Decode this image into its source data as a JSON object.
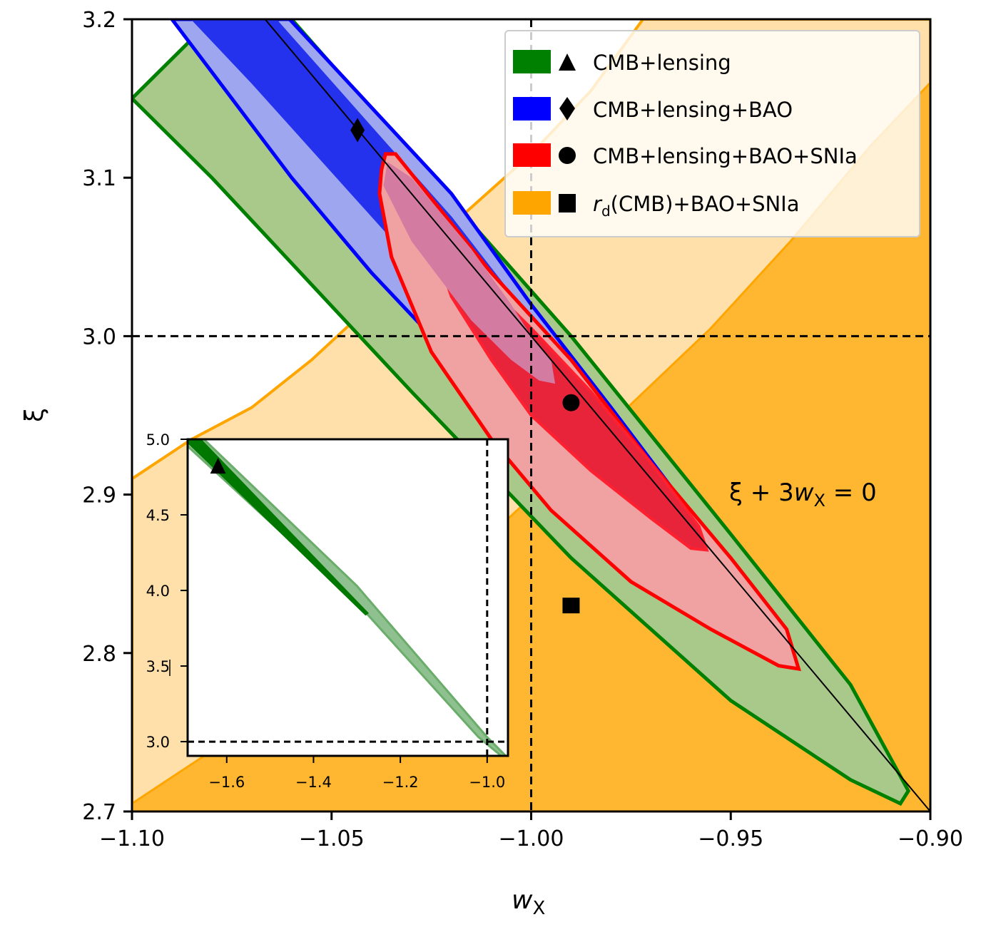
{
  "chart_data": {
    "type": "contour",
    "xlabel": "w_X",
    "xlabel_main": "w",
    "xlabel_sub": "X",
    "ylabel": "ξ",
    "xlim": [
      -1.1,
      -0.9
    ],
    "ylim": [
      2.7,
      3.2
    ],
    "xticks": [
      -1.1,
      -1.05,
      -1.0,
      -0.95,
      -0.9
    ],
    "xtick_labels": [
      "−1.10",
      "−1.05",
      "−1.00",
      "−0.95",
      "−0.90"
    ],
    "yticks": [
      2.7,
      2.8,
      2.9,
      3.0,
      3.1,
      3.2
    ],
    "ytick_labels": [
      "2.7",
      "2.8",
      "2.9",
      "3.0",
      "3.1",
      "3.2"
    ],
    "grid": false,
    "reference_lines": {
      "w_X": -1.0,
      "xi": 3.0,
      "style": "dashed"
    },
    "annotation": {
      "text_main": "ξ + 3",
      "text_w": "w",
      "text_sub": "X",
      "text_end": " = 0",
      "equation": "ξ + 3w_X = 0"
    },
    "legend": {
      "placement": "top-right",
      "entries": [
        {
          "label": "CMB+lensing",
          "color": "#008000",
          "marker": "triangle"
        },
        {
          "label": "CMB+lensing+BAO",
          "color": "#0000ff",
          "marker": "diamond"
        },
        {
          "label": "CMB+lensing+BAO+SNIa",
          "color": "#ff0000",
          "marker": "circle"
        },
        {
          "label_main": "r",
          "label_sub": "d",
          "label_rest": "(CMB)+BAO+SNIa",
          "label": "r_d(CMB)+BAO+SNIa",
          "color": "#ffa500",
          "marker": "square"
        }
      ]
    },
    "series": [
      {
        "name": "CMB+lensing",
        "color": "#008000",
        "best_fit": {
          "w_X": -1.62,
          "xi": 4.82,
          "shown_in": "inset"
        },
        "contours_1sigma": [
          [
            -1.072,
            3.2
          ],
          [
            -1.005,
            3.0
          ],
          [
            -0.93,
            2.77
          ],
          [
            -0.906,
            2.71
          ]
        ],
        "note": "narrow band along ξ = -3w_X"
      },
      {
        "name": "CMB+lensing+BAO",
        "color": "#0000ff",
        "best_fit": {
          "w_X": -1.0435,
          "xi": 3.13
        }
      },
      {
        "name": "CMB+lensing+BAO+SNIa",
        "color": "#ff0000",
        "best_fit": {
          "w_X": -0.99,
          "xi": 2.958
        }
      },
      {
        "name": "r_d(CMB)+BAO+SNIa",
        "color": "#ffa500",
        "best_fit": {
          "w_X": -0.99,
          "xi": 2.83
        }
      }
    ],
    "inset": {
      "xlim": [
        -1.69,
        -0.952
      ],
      "ylim": [
        2.906,
        5.0
      ],
      "xticks": [
        -1.6,
        -1.4,
        -1.2,
        -1.0
      ],
      "xtick_labels": [
        "−1.6",
        "−1.4",
        "−1.2",
        "−1.0"
      ],
      "yticks": [
        3.0,
        3.5,
        4.0,
        4.5,
        5.0
      ],
      "ytick_labels": [
        "3.0",
        "3.5",
        "4.0",
        "4.5",
        "5.0"
      ],
      "reference_lines": {
        "w_X": -1.0,
        "xi": 3.0
      }
    }
  }
}
